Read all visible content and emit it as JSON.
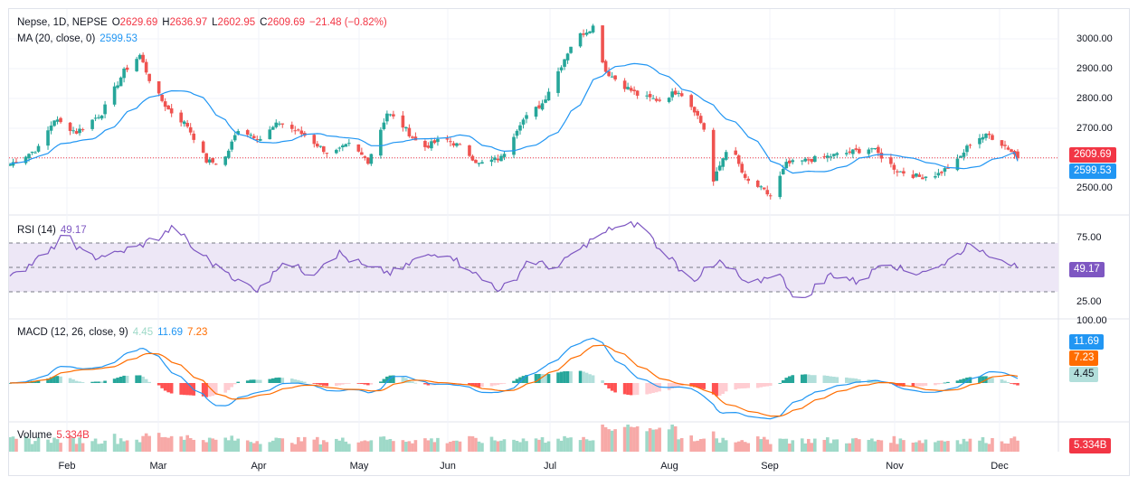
{
  "header": {
    "symbol_line": "Nepse, 1D, NEPSE",
    "o_label": "O",
    "o_value": "2629.69",
    "h_label": "H",
    "h_value": "2636.97",
    "l_label": "L",
    "l_value": "2602.95",
    "c_label": "C",
    "c_value": "2609.69",
    "change": "−21.48 (−0.82%)"
  },
  "ma_legend": {
    "label": "MA (20, close, 0)",
    "value": "2599.53"
  },
  "rsi_legend": {
    "label": "RSI (14)",
    "value": "49.17"
  },
  "macd_legend": {
    "label": "MACD (12, 26, close, 9)",
    "hist": "4.45",
    "macd": "11.69",
    "signal": "7.23"
  },
  "volume_legend": {
    "label": "Volume",
    "value": "5.334B"
  },
  "tags": {
    "price": "2609.69",
    "ma": "2599.53",
    "rsi": "49.17",
    "macd": "11.69",
    "signal": "7.23",
    "hist": "4.45",
    "volume": "5.334B"
  },
  "price_axis": [
    "3000.00",
    "2900.00",
    "2800.00",
    "2700.00",
    "2500.00"
  ],
  "rsi_axis": [
    "75.00",
    "25.00"
  ],
  "macd_axis": [
    "100.00"
  ],
  "months": [
    "Feb",
    "Mar",
    "Apr",
    "May",
    "Jun",
    "Jul",
    "Aug",
    "Sep",
    "Nov",
    "Dec"
  ],
  "colors": {
    "up": "#26a69a",
    "down": "#ef5350",
    "ma": "#2196f3",
    "rsi": "#7e57c2",
    "macd": "#2196f3",
    "signal": "#ff6d00",
    "vol_up": "#9ed9c8",
    "vol_down": "#f7a9a7",
    "grid": "#f0f3fa",
    "rsi_band": "#ede7f6"
  },
  "chart_data": {
    "type": "candlestick",
    "title": "Nepse, 1D, NEPSE",
    "ylim": [
      2440,
      3060
    ],
    "ohlc_anchor_closes": [
      [
        "2024-01-22",
        2590
      ],
      [
        "2024-01-31",
        2640
      ],
      [
        "2024-02-05",
        2730
      ],
      [
        "2024-02-12",
        2690
      ],
      [
        "2024-02-20",
        2750
      ],
      [
        "2024-02-27",
        2880
      ],
      [
        "2024-03-03",
        2930
      ],
      [
        "2024-03-07",
        2830
      ],
      [
        "2024-03-12",
        2760
      ],
      [
        "2024-03-18",
        2710
      ],
      [
        "2024-03-24",
        2600
      ],
      [
        "2024-03-29",
        2590
      ],
      [
        "2024-04-03",
        2700
      ],
      [
        "2024-04-10",
        2670
      ],
      [
        "2024-04-16",
        2720
      ],
      [
        "2024-04-24",
        2680
      ],
      [
        "2024-05-02",
        2620
      ],
      [
        "2024-05-08",
        2650
      ],
      [
        "2024-05-14",
        2600
      ],
      [
        "2024-05-20",
        2750
      ],
      [
        "2024-05-24",
        2720
      ],
      [
        "2024-05-31",
        2640
      ],
      [
        "2024-06-07",
        2670
      ],
      [
        "2024-06-13",
        2640
      ],
      [
        "2024-06-18",
        2590
      ],
      [
        "2024-06-25",
        2610
      ],
      [
        "2024-07-01",
        2720
      ],
      [
        "2024-07-08",
        2780
      ],
      [
        "2024-07-14",
        2900
      ],
      [
        "2024-07-18",
        2980
      ],
      [
        "2024-07-24",
        3020
      ],
      [
        "2024-07-28",
        2880
      ],
      [
        "2024-08-02",
        2840
      ],
      [
        "2024-08-08",
        2800
      ],
      [
        "2024-08-14",
        2790
      ],
      [
        "2024-08-20",
        2820
      ],
      [
        "2024-08-25",
        2760
      ],
      [
        "2024-08-28",
        2700
      ],
      [
        "2024-08-30",
        2510
      ],
      [
        "2024-09-05",
        2660
      ],
      [
        "2024-09-10",
        2540
      ],
      [
        "2024-09-14",
        2520
      ],
      [
        "2024-09-18",
        2490
      ],
      [
        "2024-09-23",
        2590
      ],
      [
        "2024-10-20",
        2640
      ],
      [
        "2024-10-28",
        2570
      ],
      [
        "2024-11-04",
        2550
      ],
      [
        "2024-11-10",
        2560
      ],
      [
        "2024-11-16",
        2600
      ],
      [
        "2024-11-21",
        2670
      ],
      [
        "2024-11-26",
        2680
      ],
      [
        "2024-12-02",
        2640
      ],
      [
        "2024-12-05",
        2610
      ]
    ],
    "ma": {
      "name": "MA (20, close, 0)",
      "last": 2599.53
    },
    "rsi": {
      "name": "RSI (14)",
      "last": 49.17,
      "bands": [
        70,
        50,
        30
      ],
      "anchors": [
        45,
        55,
        75,
        58,
        62,
        70,
        82,
        60,
        45,
        30,
        55,
        45,
        62,
        50,
        45,
        58,
        62,
        45,
        30,
        55,
        50,
        68,
        82,
        86,
        60,
        40,
        55,
        35,
        45,
        22,
        45,
        38,
        55,
        45,
        50,
        68,
        60,
        49
      ]
    },
    "macd": {
      "name": "MACD (12, 26, close, 9)",
      "macd_last": 11.69,
      "signal_last": 7.23,
      "hist_last": 4.45
    },
    "volume": {
      "name": "Volume",
      "last": "5.334B"
    }
  }
}
